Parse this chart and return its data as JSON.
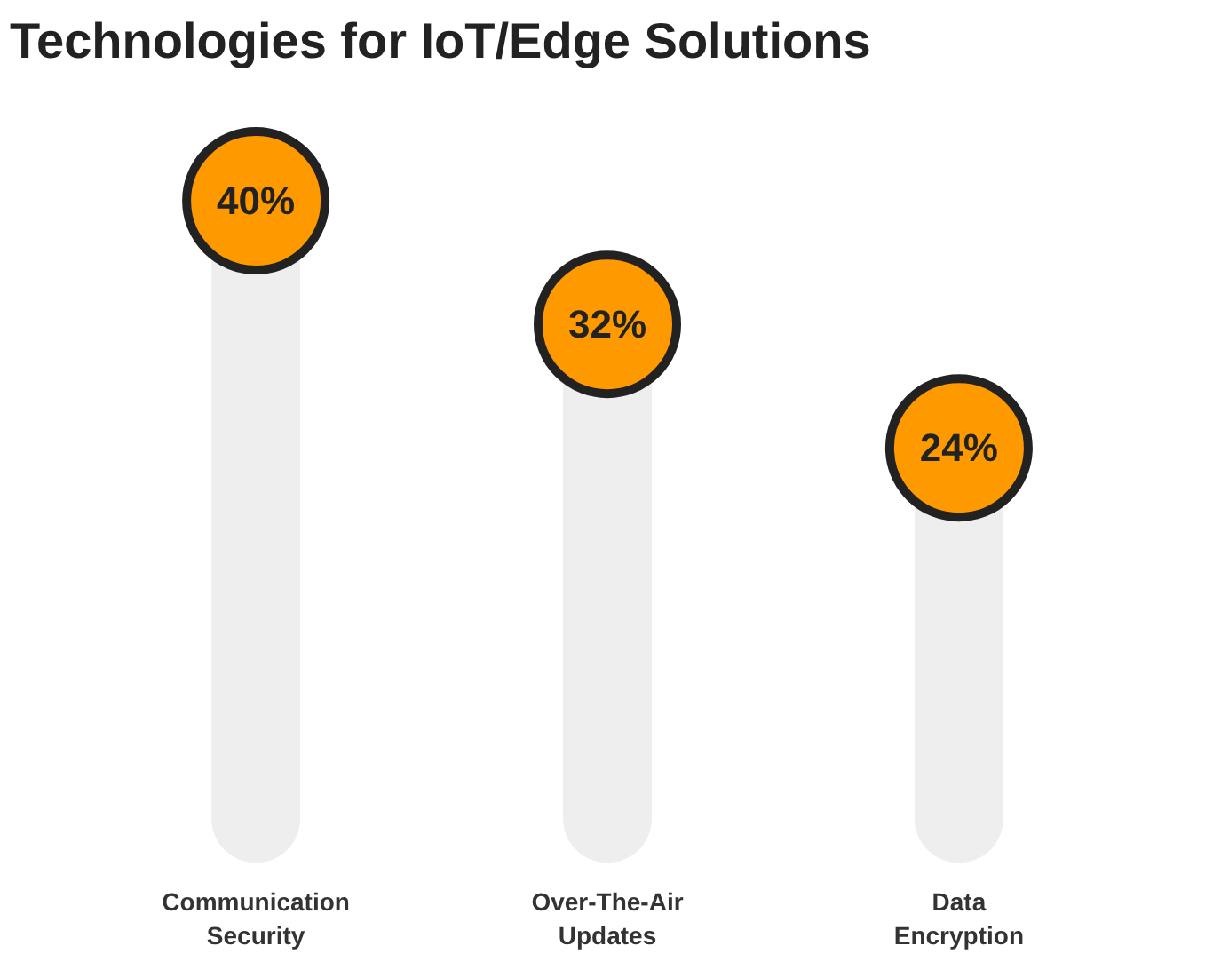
{
  "chart_data": {
    "type": "lollipop",
    "title": "Technologies for IoT/Edge Solutions",
    "categories": [
      "Communication Security",
      "Over-The-Air Updates",
      "Data Encryption"
    ],
    "values": [
      40,
      32,
      24
    ],
    "value_labels": [
      "40%",
      "32%",
      "24%"
    ],
    "color": "#ff9900"
  }
}
